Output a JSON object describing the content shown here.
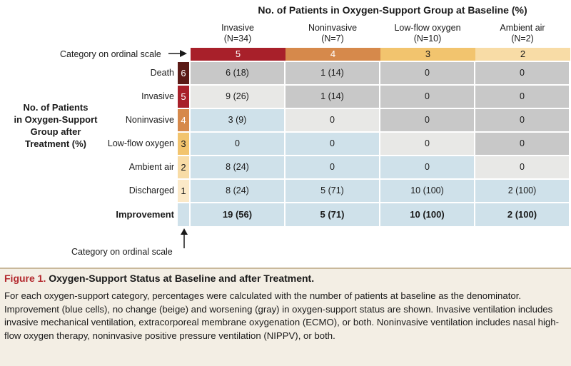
{
  "figure": {
    "top_title": "No. of Patients in Oxygen-Support Group at Baseline (%)",
    "category_label_top": "Category on ordinal scale",
    "category_label_bottom": "Category on ordinal scale",
    "left_title_lines": [
      "No. of Patients",
      "in Oxygen-Support",
      "Group after",
      "Treatment (%)"
    ],
    "improvement_label": "Improvement",
    "caption_label": "Figure 1.",
    "caption_title": " Oxygen-Support Status at Baseline and after Treatment.",
    "caption_text": "For each oxygen-support category, percentages were calculated with the number of patients at baseline as the denominator. Improvement (blue cells), no change (beige) and worsening (gray) in oxygen-support status are shown. Invasive ventilation includes invasive mechanical ventilation, extracorporeal membrane oxygenation (ECMO), or both. Noninvasive ventilation includes nasal high-flow oxygen therapy, noninvasive positive pressure ventilation (NIPPV), or both."
  },
  "colors": {
    "worsening": "#c8c8c8",
    "no_change": "#e8e8e6",
    "improvement": "#cfe1ea",
    "cat5": "#a8202a",
    "cat4": "#d6894b",
    "cat3": "#f2c46e",
    "cat2": "#f8dca6",
    "cat1": "#fbe9c8",
    "cat6": "#5b1a16"
  },
  "chart_data": {
    "type": "table",
    "baseline_columns": [
      {
        "name": "Invasive",
        "n": "(N=34)",
        "category": "5",
        "color_key": "cat5"
      },
      {
        "name": "Noninvasive",
        "n": "(N=7)",
        "category": "4",
        "color_key": "cat4"
      },
      {
        "name": "Low-flow oxygen",
        "n": "(N=10)",
        "category": "3",
        "color_key": "cat3"
      },
      {
        "name": "Ambient air",
        "n": "(N=2)",
        "category": "2",
        "color_key": "cat2"
      }
    ],
    "after_rows": [
      {
        "label": "Death",
        "category": "6",
        "color_key": "cat6",
        "cells": [
          {
            "text": "6 (18)",
            "status": "worsening"
          },
          {
            "text": "1 (14)",
            "status": "worsening"
          },
          {
            "text": "0",
            "status": "worsening"
          },
          {
            "text": "0",
            "status": "worsening"
          }
        ]
      },
      {
        "label": "Invasive",
        "category": "5",
        "color_key": "cat5",
        "cells": [
          {
            "text": "9 (26)",
            "status": "no_change"
          },
          {
            "text": "1 (14)",
            "status": "worsening"
          },
          {
            "text": "0",
            "status": "worsening"
          },
          {
            "text": "0",
            "status": "worsening"
          }
        ]
      },
      {
        "label": "Noninvasive",
        "category": "4",
        "color_key": "cat4",
        "cells": [
          {
            "text": "3 (9)",
            "status": "improvement"
          },
          {
            "text": "0",
            "status": "no_change"
          },
          {
            "text": "0",
            "status": "worsening"
          },
          {
            "text": "0",
            "status": "worsening"
          }
        ]
      },
      {
        "label": "Low-flow oxygen",
        "category": "3",
        "color_key": "cat3",
        "cells": [
          {
            "text": "0",
            "status": "improvement"
          },
          {
            "text": "0",
            "status": "improvement"
          },
          {
            "text": "0",
            "status": "no_change"
          },
          {
            "text": "0",
            "status": "worsening"
          }
        ]
      },
      {
        "label": "Ambient air",
        "category": "2",
        "color_key": "cat2",
        "cells": [
          {
            "text": "8 (24)",
            "status": "improvement"
          },
          {
            "text": "0",
            "status": "improvement"
          },
          {
            "text": "0",
            "status": "improvement"
          },
          {
            "text": "0",
            "status": "no_change"
          }
        ]
      },
      {
        "label": "Discharged",
        "category": "1",
        "color_key": "cat1",
        "cells": [
          {
            "text": "8 (24)",
            "status": "improvement"
          },
          {
            "text": "5 (71)",
            "status": "improvement"
          },
          {
            "text": "10 (100)",
            "status": "improvement"
          },
          {
            "text": "2 (100)",
            "status": "improvement"
          }
        ]
      }
    ],
    "improvement_row": [
      "19 (56)",
      "5 (71)",
      "10 (100)",
      "2 (100)"
    ]
  }
}
